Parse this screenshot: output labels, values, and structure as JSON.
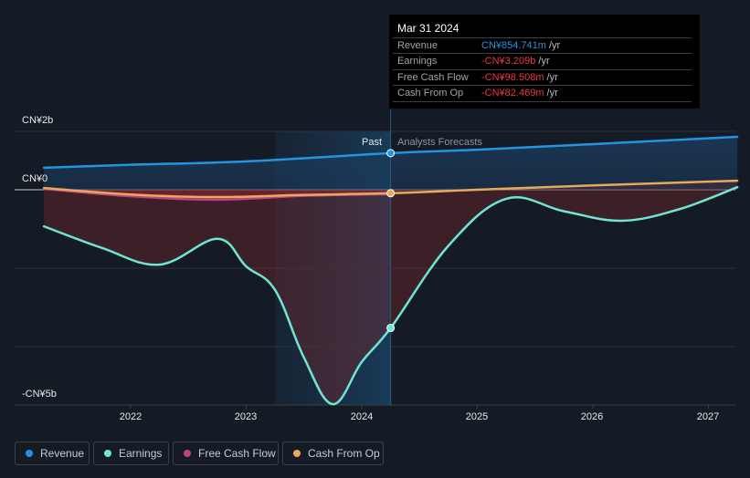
{
  "colors": {
    "background": "#151b24",
    "revenue": "#2394df",
    "earnings": "#6ee6d3",
    "free_cash_flow": "#c2427f",
    "cash_from_op": "#e8a95c",
    "tooltip_negative": "#f0393c",
    "tooltip_revenue": "#2394df"
  },
  "tooltip": {
    "date": "Mar 31 2024",
    "rows": [
      {
        "label": "Revenue",
        "value": "CN¥854.741m",
        "unit": "/yr"
      },
      {
        "label": "Earnings",
        "value": "-CN¥3.209b",
        "unit": "/yr"
      },
      {
        "label": "Free Cash Flow",
        "value": "-CN¥98.508m",
        "unit": "/yr"
      },
      {
        "label": "Cash From Op",
        "value": "-CN¥82.469m",
        "unit": "/yr"
      }
    ]
  },
  "sections": {
    "past": "Past",
    "forecast": "Analysts Forecasts"
  },
  "legend": [
    {
      "name": "Revenue",
      "icon": "dot-icon"
    },
    {
      "name": "Earnings",
      "icon": "dot-icon"
    },
    {
      "name": "Free Cash Flow",
      "icon": "dot-icon"
    },
    {
      "name": "Cash From Op",
      "icon": "dot-icon"
    }
  ],
  "chart_data": {
    "type": "line",
    "title": "",
    "xlabel": "",
    "ylabel": "",
    "y_tick_labels": [
      "CN¥2b",
      "CN¥0",
      "-CN¥5b"
    ],
    "x_tick_labels": [
      "2022",
      "2023",
      "2024",
      "2025",
      "2026",
      "2027"
    ],
    "x_ticks": [
      2022,
      2023,
      2024,
      2025,
      2026,
      2027
    ],
    "xlim": [
      2021.0,
      2027.25
    ],
    "ylim": [
      -5.0,
      1.36
    ],
    "units": "CN¥ billions",
    "grid": true,
    "legend_position": "bottom",
    "highlight_date": 2024.25,
    "past_shade_start": 2023.25,
    "series": [
      {
        "name": "Revenue",
        "x": [
          2021.25,
          2022.0,
          2023.0,
          2024.25,
          2025.0,
          2026.0,
          2027.25
        ],
        "values": [
          0.51,
          0.58,
          0.66,
          0.85,
          0.93,
          1.06,
          1.23
        ]
      },
      {
        "name": "Earnings",
        "x": [
          2021.25,
          2021.75,
          2022.25,
          2022.75,
          2023.0,
          2023.25,
          2023.5,
          2023.75,
          2024.0,
          2024.25,
          2024.75,
          2025.25,
          2025.75,
          2026.25,
          2026.75,
          2027.25
        ],
        "values": [
          -0.85,
          -1.35,
          -1.74,
          -1.14,
          -1.78,
          -2.33,
          -3.9,
          -4.98,
          -4.0,
          -3.21,
          -1.3,
          -0.21,
          -0.5,
          -0.72,
          -0.45,
          0.06
        ]
      },
      {
        "name": "Free Cash Flow",
        "x": [
          2021.25,
          2022.0,
          2022.75,
          2023.5,
          2024.25
        ],
        "values": [
          0.02,
          -0.15,
          -0.23,
          -0.14,
          -0.1
        ]
      },
      {
        "name": "Cash From Op",
        "x": [
          2021.25,
          2022.0,
          2022.75,
          2023.5,
          2024.25,
          2025.0,
          2026.0,
          2027.25
        ],
        "values": [
          0.04,
          -0.11,
          -0.17,
          -0.12,
          -0.08,
          0.0,
          0.1,
          0.21
        ]
      }
    ]
  }
}
